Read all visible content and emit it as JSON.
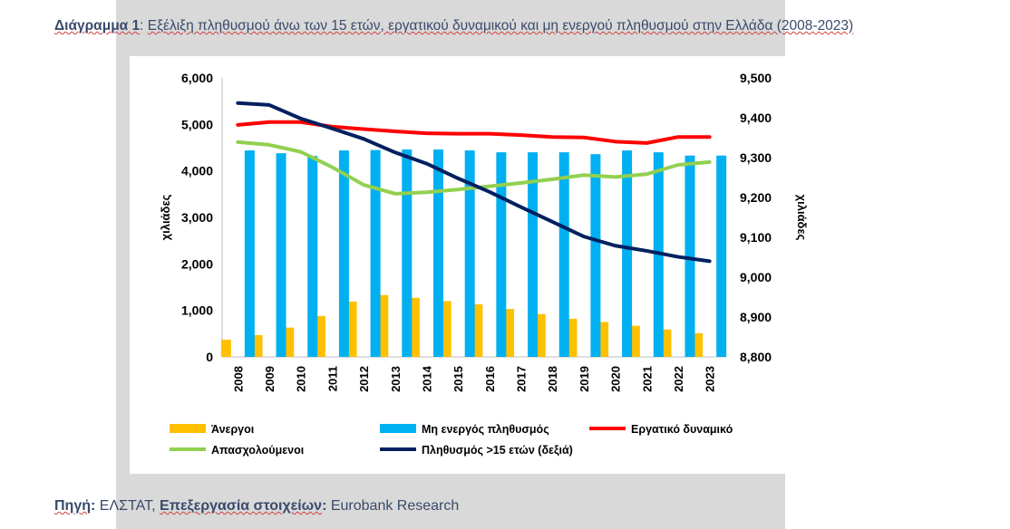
{
  "header": {
    "label": "Διάγραμμα 1",
    "separator": ":",
    "title": "Εξέλιξη πληθυσμού άνω των 15 ετών, εργατικού δυναμικού και μη ενεργού πληθυσμού στην Ελλάδα (2008-2023)"
  },
  "footer": {
    "source_label": "Πηγή",
    "source_value": "ΕΛΣΤΑΤ",
    "processing_label": "Επεξεργασία στοιχείων",
    "processing_value": "Eurobank Research"
  },
  "colors": {
    "unemployed": "#ffc000",
    "inactive": "#00b0f0",
    "labour_force": "#ff0000",
    "employed": "#92d050",
    "population": "#002060"
  },
  "chart_data": {
    "type": "bar",
    "categories": [
      "2008",
      "2009",
      "2010",
      "2011",
      "2012",
      "2013",
      "2014",
      "2015",
      "2016",
      "2017",
      "2018",
      "2019",
      "2020",
      "2021",
      "2022",
      "2023"
    ],
    "ylabel": "χιλιάδες",
    "y2label": "χιλιάδες",
    "ylim": [
      0,
      6000
    ],
    "y2lim": [
      8800,
      9500
    ],
    "yticks": [
      "0",
      "1,000",
      "2,000",
      "3,000",
      "4,000",
      "5,000",
      "6,000"
    ],
    "y2ticks": [
      "8,800",
      "8,900",
      "9,000",
      "9,100",
      "9,200",
      "9,300",
      "9,400",
      "9,500"
    ],
    "legend_position": "bottom",
    "series": [
      {
        "name": "Άνεργοι",
        "type": "bar",
        "axis": "left",
        "values": [
          370,
          470,
          630,
          880,
          1190,
          1330,
          1270,
          1200,
          1130,
          1030,
          920,
          820,
          750,
          670,
          590,
          510
        ]
      },
      {
        "name": "Μη ενεργός πληθυσμός",
        "type": "bar",
        "axis": "left",
        "values": [
          4440,
          4380,
          4320,
          4440,
          4450,
          4460,
          4460,
          4440,
          4400,
          4400,
          4400,
          4360,
          4440,
          4400,
          4330,
          4330
        ]
      },
      {
        "name": "Εργατικό δυναμικό",
        "type": "line",
        "axis": "left",
        "values": [
          4990,
          5050,
          5050,
          4950,
          4900,
          4850,
          4810,
          4800,
          4800,
          4770,
          4730,
          4720,
          4630,
          4600,
          4730,
          4730
        ]
      },
      {
        "name": "Απασχολούμενοι",
        "type": "line",
        "axis": "left",
        "values": [
          4620,
          4560,
          4410,
          4080,
          3700,
          3510,
          3540,
          3600,
          3670,
          3740,
          3820,
          3910,
          3870,
          3930,
          4130,
          4190
        ]
      },
      {
        "name": "Πληθυσμός >15 ετών (δεξιά)",
        "type": "line",
        "axis": "right",
        "values": [
          9437,
          9432,
          9398,
          9373,
          9347,
          9313,
          9285,
          9248,
          9214,
          9176,
          9139,
          9102,
          9079,
          9066,
          9051,
          9040
        ]
      }
    ]
  }
}
